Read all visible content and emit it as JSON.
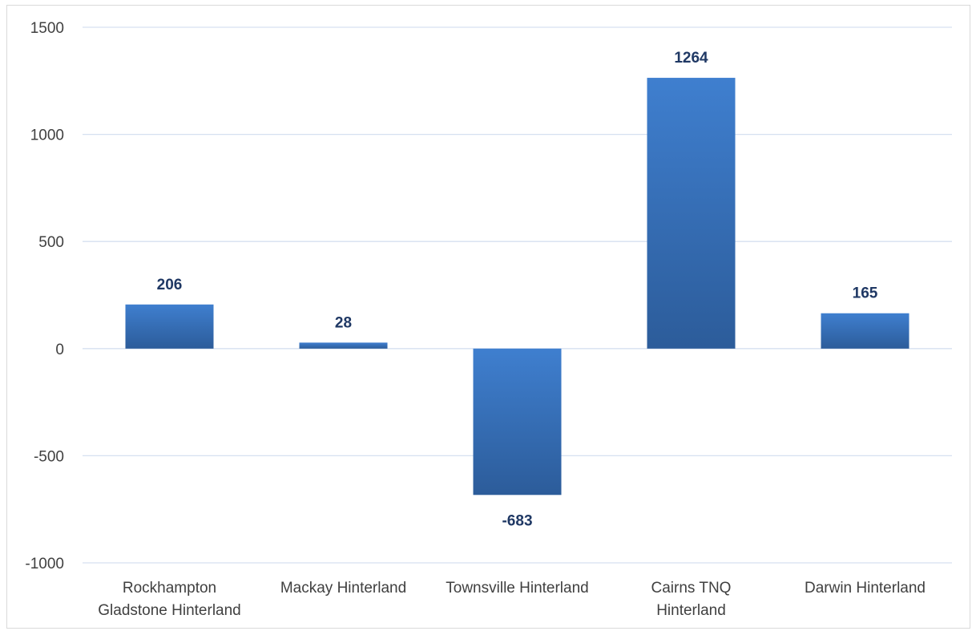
{
  "chart_data": {
    "type": "bar",
    "title": "",
    "xlabel": "",
    "ylabel": "",
    "categories": [
      [
        "Rockhampton",
        "Gladstone Hinterland"
      ],
      [
        "Mackay Hinterland"
      ],
      [
        "Townsville Hinterland"
      ],
      [
        "Cairns TNQ",
        "Hinterland"
      ],
      [
        "Darwin Hinterland"
      ]
    ],
    "values": [
      206,
      28,
      -683,
      1264,
      165
    ],
    "data_labels": [
      "206",
      "28",
      "-683",
      "1264",
      "165"
    ],
    "ylim": [
      -1000,
      1500
    ],
    "yticks": [
      1500,
      1000,
      500,
      0,
      -500,
      -1000
    ],
    "ytick_labels": [
      "1500",
      "1000",
      "500",
      "0",
      "-500",
      "-1000"
    ],
    "grid": true,
    "legend": "none",
    "colors": {
      "bar_top": "#3f7fcf",
      "bar_bottom": "#2c5c9a",
      "label": "#1f3864"
    }
  }
}
